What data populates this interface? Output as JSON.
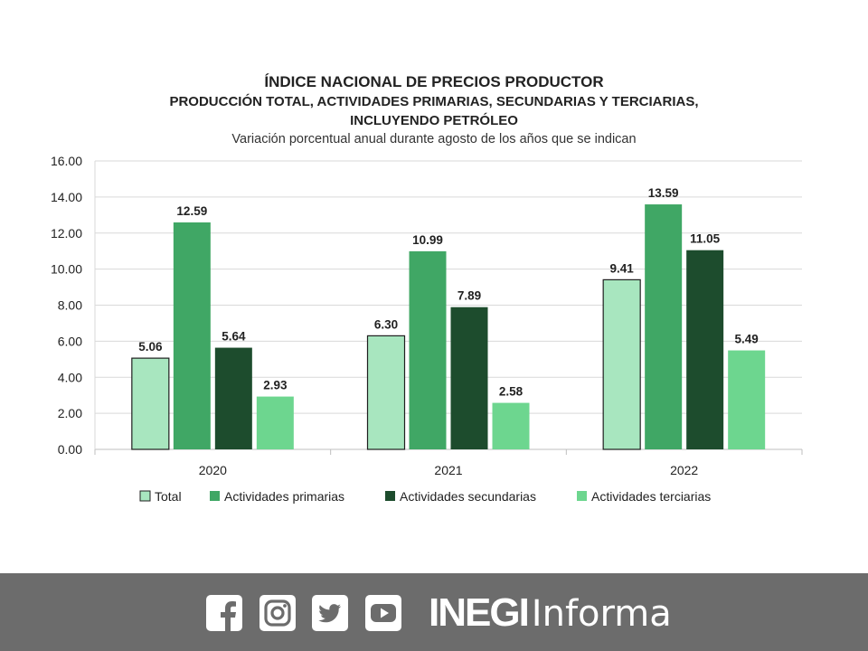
{
  "header": {
    "title": "ÍNDICE NACIONAL DE PRECIOS PRODUCTOR",
    "subtitle_line1": "PRODUCCIÓN TOTAL, ACTIVIDADES PRIMARIAS, SECUNDARIAS Y TERCIARIAS,",
    "subtitle_line2": "INCLUYENDO PETRÓLEO",
    "description": "Variación porcentual anual durante agosto de los años que se indican"
  },
  "chart_data": {
    "type": "bar",
    "title": "ÍNDICE NACIONAL DE PRECIOS PRODUCTOR",
    "categories": [
      "2020",
      "2021",
      "2022"
    ],
    "series": [
      {
        "name": "Total",
        "color": "#a8e6bf",
        "values": [
          5.06,
          6.3,
          9.41
        ]
      },
      {
        "name": "Actividades primarias",
        "color": "#40a765",
        "values": [
          12.59,
          10.99,
          13.59
        ]
      },
      {
        "name": "Actividades secundarias",
        "color": "#1d4c2d",
        "values": [
          5.64,
          7.89,
          11.05
        ]
      },
      {
        "name": "Actividades terciarias",
        "color": "#6dd68f",
        "values": [
          2.93,
          2.58,
          5.49
        ]
      }
    ],
    "data_labels": [
      [
        "5.06",
        "6.30",
        "9.41"
      ],
      [
        "12.59",
        "10.99",
        "13.59"
      ],
      [
        "5.64",
        "7.89",
        "11.05"
      ],
      [
        "2.93",
        "2.58",
        "5.49"
      ]
    ],
    "ylim": [
      0,
      16
    ],
    "yticks": [
      "0.00",
      "2.00",
      "4.00",
      "6.00",
      "8.00",
      "10.00",
      "12.00",
      "14.00",
      "16.00"
    ],
    "xlabel": "",
    "ylabel": "",
    "grid": true,
    "legend_position": "bottom"
  },
  "footer": {
    "brand_bold": "INEGI",
    "brand_light": "Informa",
    "icons": [
      "facebook-icon",
      "instagram-icon",
      "twitter-icon",
      "youtube-icon"
    ],
    "background_color": "#6c6c6c"
  }
}
